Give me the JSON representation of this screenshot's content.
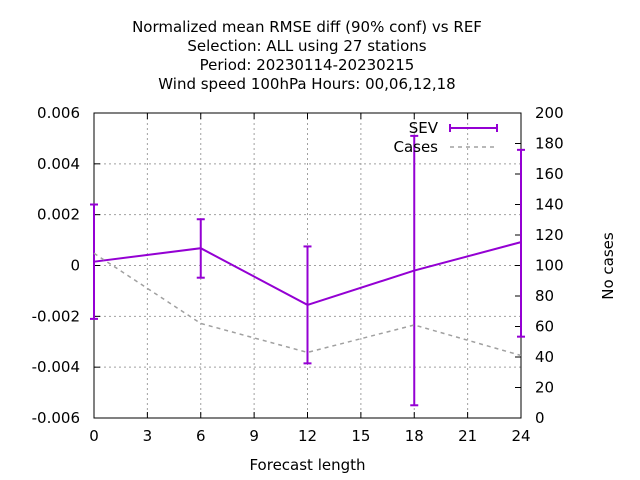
{
  "chart_data": {
    "type": "line",
    "title_lines": [
      "Normalized mean RMSE diff (90% conf) vs REF",
      "Selection: ALL using    27 stations",
      "Period: 20230114-20230215",
      "Wind speed 100hPa   Hours:  00,06,12,18"
    ],
    "xlabel": "Forecast length",
    "ylabel_right": "No cases",
    "x_ticks": [
      "0",
      "3",
      "6",
      "9",
      "12",
      "15",
      "18",
      "21",
      "24"
    ],
    "y_ticks_left": [
      "0.006",
      "0.004",
      "0.002",
      "0",
      "-0.002",
      "-0.004",
      "-0.006"
    ],
    "y_ticks_right": [
      "200",
      "180",
      "160",
      "140",
      "120",
      "100",
      "80",
      "60",
      "40",
      "20",
      "0"
    ],
    "xlim": [
      0,
      24
    ],
    "ylim_left": [
      -0.006,
      0.006
    ],
    "ylim_right": [
      0,
      200
    ],
    "grid": true,
    "legend_position": "top-right",
    "series": [
      {
        "name": "SEV",
        "axis": "left",
        "color": "#9400d3",
        "x": [
          0,
          6,
          12,
          18,
          24
        ],
        "y": [
          0.00015,
          0.00068,
          -0.00155,
          -0.0002,
          0.00092
        ],
        "err_low": [
          -0.0021,
          -0.00048,
          -0.00385,
          -0.0055,
          -0.0028
        ],
        "err_high": [
          0.0024,
          0.00182,
          0.00075,
          0.0051,
          0.00455
        ]
      },
      {
        "name": "Cases",
        "axis": "right",
        "color": "#a0a0a0",
        "dashed": true,
        "x": [
          0,
          6,
          12,
          18,
          24
        ],
        "y": [
          108,
          62,
          43,
          61,
          41
        ]
      }
    ]
  }
}
